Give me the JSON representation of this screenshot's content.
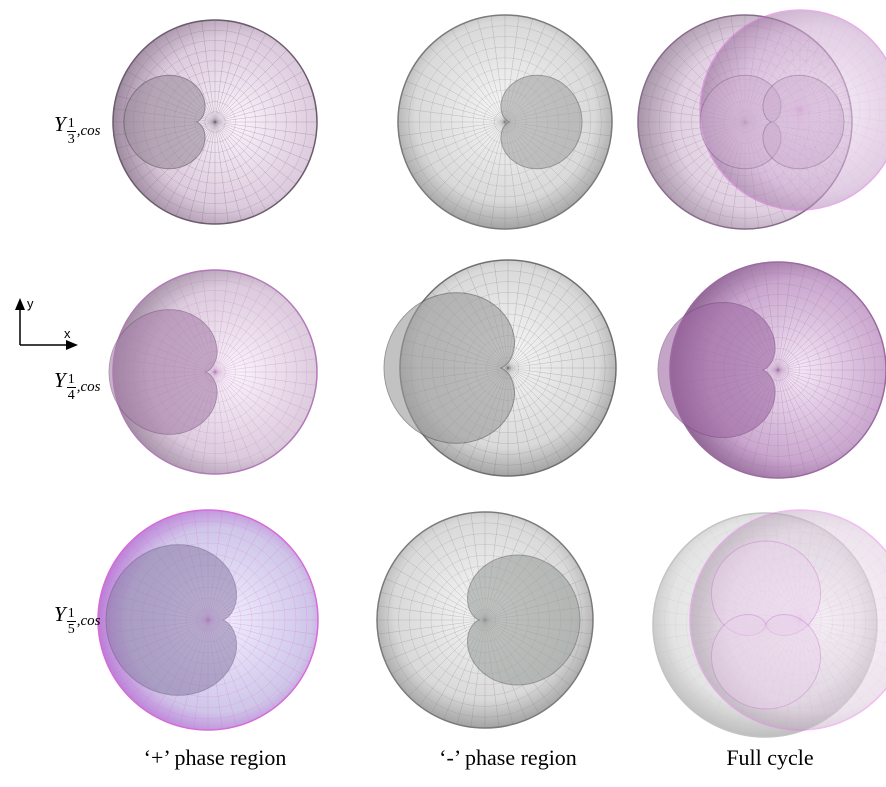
{
  "rows": [
    {
      "symbol": "Y",
      "numerator": "1",
      "denominator": "3",
      "suffix": ",cos"
    },
    {
      "symbol": "Y",
      "numerator": "1",
      "denominator": "4",
      "suffix": ",cos"
    },
    {
      "symbol": "Y",
      "numerator": "1",
      "denominator": "5",
      "suffix": ",cos"
    }
  ],
  "columns": [
    "‘+’ phase region",
    "‘-’ phase region",
    "Full cycle"
  ],
  "axes": {
    "y": "y",
    "x": "x"
  }
}
